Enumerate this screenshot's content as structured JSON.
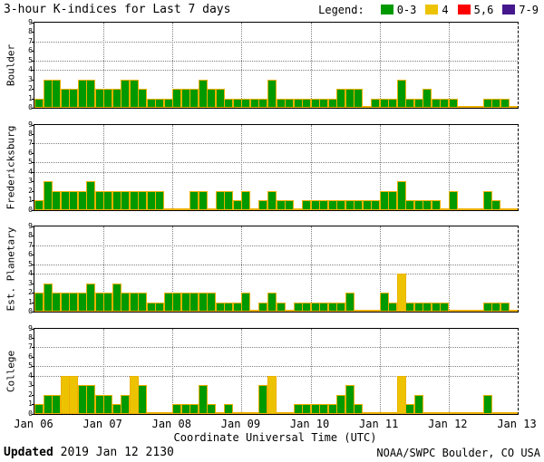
{
  "legend": {
    "label": "Legend:",
    "items": [
      {
        "label": "0-3",
        "color": "#009900"
      },
      {
        "label": "4",
        "color": "#edc301"
      },
      {
        "label": "5,6",
        "color": "#ff0000"
      },
      {
        "label": "7-9",
        "color": "#44188c"
      }
    ]
  },
  "footer": {
    "updated_label": "Updated",
    "updated_value": "2019 Jan 12 2130",
    "credit": "NOAA/SWPC Boulder, CO USA"
  },
  "chart_data": {
    "type": "bar",
    "title": "3-hour K-indices for Last 7 days",
    "xlabel": "Coordinate Universal Time (UTC)",
    "x_labels": [
      "Jan 06",
      "Jan 07",
      "Jan 08",
      "Jan 09",
      "Jan 10",
      "Jan 11",
      "Jan 12",
      "Jan 13"
    ],
    "bars_per_day": 8,
    "ylim": [
      0,
      9
    ],
    "y_ticks": [
      0,
      1,
      2,
      3,
      4,
      5,
      6,
      7,
      8,
      9
    ],
    "y_gridlines": [
      4,
      5,
      7
    ],
    "bar_outline": "#edb000",
    "color_rules": [
      {
        "max": 3,
        "color": "#009900"
      },
      {
        "max": 4,
        "color": "#edc301"
      },
      {
        "max": 6,
        "color": "#ff0000"
      },
      {
        "max": 9,
        "color": "#44188c"
      }
    ],
    "series": [
      {
        "name": "Boulder",
        "values": [
          1,
          3,
          3,
          2,
          2,
          3,
          3,
          2,
          2,
          2,
          3,
          3,
          2,
          1,
          1,
          1,
          2,
          2,
          2,
          3,
          2,
          2,
          1,
          1,
          1,
          1,
          1,
          3,
          1,
          1,
          1,
          1,
          1,
          1,
          1,
          2,
          2,
          2,
          0,
          1,
          1,
          1,
          3,
          1,
          1,
          2,
          1,
          1,
          1,
          0,
          0,
          0,
          1,
          1,
          1,
          0
        ]
      },
      {
        "name": "Fredericksburg",
        "values": [
          1,
          3,
          2,
          2,
          2,
          2,
          3,
          2,
          2,
          2,
          2,
          2,
          2,
          2,
          2,
          0,
          0,
          0,
          2,
          2,
          0,
          2,
          2,
          1,
          2,
          0,
          1,
          2,
          1,
          1,
          0,
          1,
          1,
          1,
          1,
          1,
          1,
          1,
          1,
          1,
          2,
          2,
          3,
          1,
          1,
          1,
          1,
          0,
          2,
          0,
          0,
          0,
          2,
          1,
          0,
          0
        ]
      },
      {
        "name": "Est. Planetary",
        "values": [
          2,
          3,
          2,
          2,
          2,
          2,
          3,
          2,
          2,
          3,
          2,
          2,
          2,
          1,
          1,
          2,
          2,
          2,
          2,
          2,
          2,
          1,
          1,
          1,
          2,
          0,
          1,
          2,
          1,
          0,
          1,
          1,
          1,
          1,
          1,
          1,
          2,
          0,
          0,
          0,
          2,
          1,
          4,
          1,
          1,
          1,
          1,
          1,
          0,
          0,
          0,
          0,
          1,
          1,
          1,
          0
        ]
      },
      {
        "name": "College",
        "values": [
          1,
          2,
          2,
          4,
          4,
          3,
          3,
          2,
          2,
          1,
          2,
          4,
          3,
          0,
          0,
          0,
          1,
          1,
          1,
          3,
          1,
          0,
          1,
          0,
          0,
          0,
          3,
          4,
          0,
          0,
          1,
          1,
          1,
          1,
          1,
          2,
          3,
          1,
          0,
          0,
          0,
          0,
          4,
          1,
          2,
          0,
          0,
          0,
          0,
          0,
          0,
          0,
          2,
          0,
          0,
          0
        ]
      }
    ]
  }
}
